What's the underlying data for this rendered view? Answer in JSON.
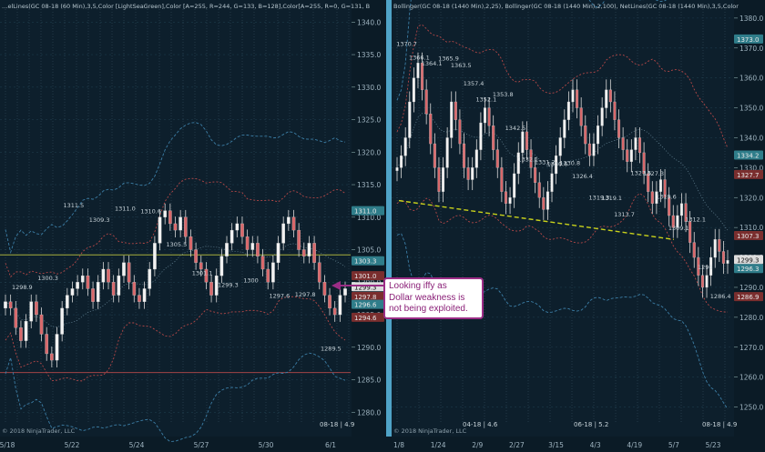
{
  "chart_data": [
    {
      "type": "candlestick",
      "title": "…elLines(GC 08-18 (60 Min),3,5,Color [LightSeaGreen],Color [A=255, R=244, G=133, B=128],Color[A=255, R=0, G=131, B",
      "footer": "© 2018 NinjaTrader, LLC",
      "period_label": "08-18 | 4.9",
      "x_ticks": [
        "5/18",
        "5/22",
        "5/24",
        "5/27",
        "5/30",
        "6/1"
      ],
      "y_ticks": [
        "1280.0",
        "1285.0",
        "1290.0",
        "1295.0",
        "1300.0",
        "1305.0",
        "1310.0",
        "1315.0",
        "1320.0",
        "1325.0",
        "1330.0",
        "1335.0",
        "1340.0"
      ],
      "ylim": [
        1278.5,
        1342
      ],
      "price_tags": [
        {
          "text": "1311.0",
          "value": 1311.0,
          "color": "#2f7d8a"
        },
        {
          "text": "1303.3",
          "value": 1303.3,
          "color": "#2f7d8a"
        },
        {
          "text": "1301.0",
          "value": 1301.0,
          "color": "#7a2e2e"
        },
        {
          "text": "1299.3",
          "value": 1299.3,
          "color": "#dddddd"
        },
        {
          "text": "1297.8",
          "value": 1297.8,
          "color": "#7a2e2e"
        },
        {
          "text": "1296.6",
          "value": 1296.6,
          "color": "#2f7d8a"
        },
        {
          "text": "1294.6",
          "value": 1294.6,
          "color": "#7a2e2e"
        }
      ],
      "annotations": [
        "1298.9",
        "1300.3",
        "1311.5",
        "1309.3",
        "1311.0",
        "1310.6",
        "1305.5",
        "1301.1",
        "1299.3",
        "1300",
        "1297.6",
        "1297.8",
        "1289.5"
      ],
      "close_series": [
        1297,
        1296,
        1293,
        1291,
        1294,
        1297,
        1295,
        1292,
        1289,
        1288,
        1292,
        1296,
        1298,
        1299,
        1300,
        1301,
        1299,
        1297,
        1300,
        1302,
        1300,
        1298,
        1301,
        1303,
        1300,
        1298,
        1297,
        1299,
        1302,
        1306,
        1310,
        1311,
        1309,
        1308,
        1310,
        1307,
        1305,
        1303,
        1302,
        1300,
        1298,
        1301,
        1304,
        1306,
        1308,
        1309,
        1307,
        1305,
        1306,
        1304,
        1302,
        1300,
        1303,
        1306,
        1309,
        1310,
        1308,
        1305,
        1304,
        1306,
        1303,
        1300,
        1298,
        1296,
        1295,
        1298,
        1299
      ],
      "horizontal_lines": [
        {
          "value": 1304.2,
          "color": "#a6ad3c"
        },
        {
          "value": 1286.1,
          "color": "#b84a4a"
        }
      ]
    },
    {
      "type": "candlestick",
      "title": "Bollinger(GC 08-18 (1440 Min),2,25), Bollinger(GC 08-18 (1440 Min),2,100), NetLines(GC 08-18 (1440 Min),3,5,Color",
      "footer": "© 2018 NinjaTrader, LLC",
      "period_label": "08-18 | 4.9",
      "x_ticks": [
        "1/8",
        "1/24",
        "2/9",
        "2/27",
        "3/15",
        "4/3",
        "4/19",
        "5/7",
        "5/23"
      ],
      "x_subticks": [
        "04-18 | 4.6",
        "06-18 | 5.2"
      ],
      "y_ticks": [
        "1250.0",
        "1260.0",
        "1270.0",
        "1280.0",
        "1290.0",
        "1300.0",
        "1310.0",
        "1320.0",
        "1330.0",
        "1340.0",
        "1350.0",
        "1360.0",
        "1370.0",
        "1380.0"
      ],
      "ylim": [
        1245,
        1383
      ],
      "price_tags": [
        {
          "text": "1373.0",
          "value": 1373.0,
          "color": "#2f7d8a"
        },
        {
          "text": "1334.2",
          "value": 1334.2,
          "color": "#2f7d8a"
        },
        {
          "text": "1327.7",
          "value": 1327.7,
          "color": "#7a2e2e"
        },
        {
          "text": "1307.3",
          "value": 1307.3,
          "color": "#7a2e2e"
        },
        {
          "text": "1299.3",
          "value": 1299.3,
          "color": "#dddddd"
        },
        {
          "text": "1296.3",
          "value": 1296.3,
          "color": "#2f7d8a"
        },
        {
          "text": "1286.9",
          "value": 1286.9,
          "color": "#7a2e2e"
        }
      ],
      "annotations": [
        "1370.7",
        "1366.1",
        "1364.1",
        "1365.9",
        "1363.5",
        "1357.4",
        "1352.1",
        "1353.8",
        "1342.5",
        "1332.1",
        "1331.2",
        "1330.6",
        "1330.8",
        "1326.4",
        "1319.3",
        "1319.1",
        "1313.7",
        "1327.5",
        "1327.3",
        "1319.6",
        "1309.1",
        "1312.1",
        "1296",
        "1286.4"
      ],
      "close_series": [
        1330,
        1334,
        1340,
        1352,
        1360,
        1365,
        1356,
        1348,
        1338,
        1330,
        1322,
        1330,
        1340,
        1352,
        1346,
        1338,
        1330,
        1326,
        1330,
        1336,
        1345,
        1350,
        1344,
        1336,
        1330,
        1322,
        1318,
        1320,
        1328,
        1335,
        1342,
        1336,
        1330,
        1325,
        1320,
        1316,
        1322,
        1328,
        1334,
        1340,
        1346,
        1352,
        1356,
        1350,
        1344,
        1338,
        1334,
        1338,
        1344,
        1350,
        1356,
        1352,
        1346,
        1340,
        1336,
        1332,
        1336,
        1340,
        1335,
        1328,
        1322,
        1318,
        1322,
        1326,
        1320,
        1314,
        1310,
        1314,
        1318,
        1312,
        1305,
        1300,
        1294,
        1290,
        1294,
        1300,
        1306,
        1302,
        1298,
        1299
      ],
      "trend_line": {
        "from": {
          "x": "1/8",
          "y": 1319.0
        },
        "to": {
          "x": "5/7",
          "y": 1306.0
        },
        "color": "#c9d21b"
      }
    }
  ],
  "callout": {
    "line1": "Looking iffy as",
    "line2": "Dollar weakness is",
    "line3": "not being exploited."
  }
}
